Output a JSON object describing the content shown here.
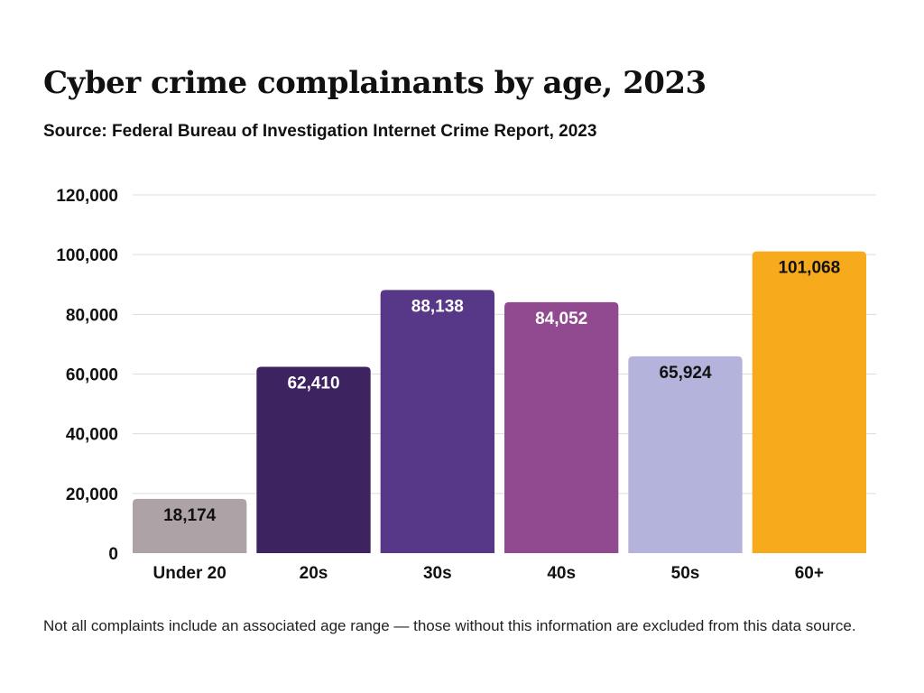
{
  "title": "Cyber crime complainants by age, 2023",
  "subtitle": "Source: Federal Bureau of Investigation Internet Crime Report, 2023",
  "note": "Not all complaints include an associated age range — those without this information are excluded from this data source.",
  "chart_data": {
    "type": "bar",
    "categories": [
      "Under 20",
      "20s",
      "30s",
      "40s",
      "50s",
      "60+"
    ],
    "values": [
      18174,
      62410,
      88138,
      84052,
      65924,
      101068
    ],
    "data_labels": [
      "18,174",
      "62,410",
      "88,138",
      "84,052",
      "65,924",
      "101,068"
    ],
    "colors": [
      "#ada2a5",
      "#3d2360",
      "#573787",
      "#914a8f",
      "#b3b3db",
      "#f8aa1d"
    ],
    "label_colors": [
      "#111111",
      "#ffffff",
      "#ffffff",
      "#ffffff",
      "#111111",
      "#111111"
    ],
    "y_ticks": [
      0,
      20000,
      40000,
      60000,
      80000,
      100000,
      120000
    ],
    "y_tick_labels": [
      "0",
      "20,000",
      "40,000",
      "60,000",
      "80,000",
      "100,000",
      "120,000"
    ],
    "ylim": [
      0,
      120000
    ],
    "grid": true,
    "xlabel": "",
    "ylabel": ""
  }
}
